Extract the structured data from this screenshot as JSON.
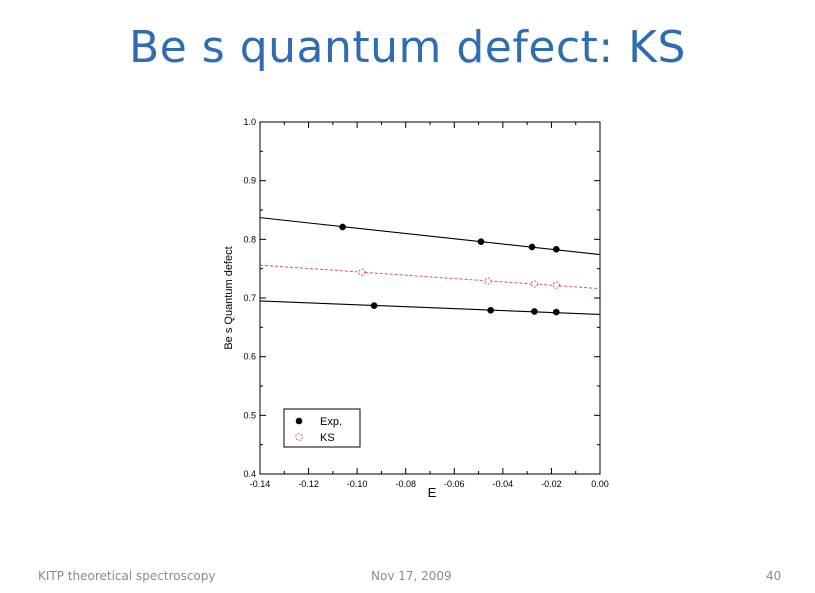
{
  "slide": {
    "title": "Be s quantum defect: KS",
    "footer_left": "KITP theoretical spectroscopy",
    "footer_center": "Nov 17, 2009",
    "page_number": "40"
  },
  "chart_data": {
    "type": "scatter",
    "title": "",
    "xlabel": "E",
    "ylabel": "Be s Quantum defect",
    "xlim": [
      -0.14,
      0.0
    ],
    "ylim": [
      0.4,
      1.0
    ],
    "xticks": [
      -0.14,
      -0.12,
      -0.1,
      -0.08,
      -0.06,
      -0.04,
      -0.02,
      0.0
    ],
    "xtick_labels": [
      "-0.14",
      "-0.12",
      "-0.10",
      "-0.08",
      "-0.06",
      "-0.04",
      "-0.02",
      "0.00"
    ],
    "yticks": [
      0.4,
      0.5,
      0.6,
      0.7,
      0.8,
      0.9,
      1.0
    ],
    "ytick_labels": [
      "0.4",
      "0.5",
      "0.6",
      "0.7",
      "0.8",
      "0.9",
      "1.0"
    ],
    "grid": false,
    "legend_position": "bottom-left",
    "legend": [
      "Exp.",
      "KS"
    ],
    "series": [
      {
        "name": "Exp.",
        "color": "#000000",
        "marker": "filled-circle",
        "points": [
          {
            "x": -0.106,
            "y": 0.821
          },
          {
            "x": -0.049,
            "y": 0.796
          },
          {
            "x": -0.028,
            "y": 0.787
          },
          {
            "x": -0.018,
            "y": 0.783
          }
        ],
        "fit_line": {
          "y_at_xmin": 0.837,
          "y_at_xmax": 0.774
        }
      },
      {
        "name": "KS",
        "color": "#d9534f",
        "marker": "open-circle",
        "dashed": true,
        "points": [
          {
            "x": -0.098,
            "y": 0.744
          },
          {
            "x": -0.046,
            "y": 0.729
          },
          {
            "x": -0.027,
            "y": 0.724
          },
          {
            "x": -0.018,
            "y": 0.722
          }
        ],
        "fit_line": {
          "y_at_xmin": 0.756,
          "y_at_xmax": 0.716
        }
      },
      {
        "color": "#000000",
        "marker": "filled-circle",
        "points": [
          {
            "x": -0.093,
            "y": 0.687
          },
          {
            "x": -0.045,
            "y": 0.679
          },
          {
            "x": -0.027,
            "y": 0.677
          },
          {
            "x": -0.018,
            "y": 0.676
          }
        ],
        "fit_line": {
          "y_at_xmin": 0.695,
          "y_at_xmax": 0.672
        }
      }
    ]
  }
}
